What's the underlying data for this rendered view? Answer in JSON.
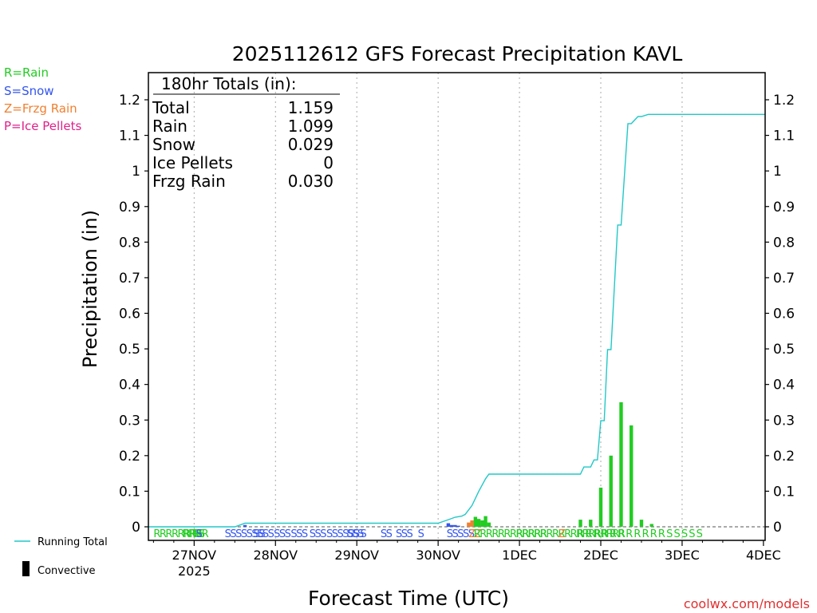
{
  "chart_data": {
    "type": "bar",
    "title": "2025112612 GFS Forecast Precipitation KAVL",
    "xlabel": "Forecast Time (UTC)",
    "ylabel": "Precipitation (in)",
    "ylim": [
      0,
      1.27
    ],
    "xlim_hours": [
      -1.5,
      180.5
    ],
    "x_unit": "forecast hours from 2025-11-26 12Z",
    "y_ticks": [
      {
        "v": 0,
        "label": "0"
      },
      {
        "v": 0.1,
        "label": "0.1"
      },
      {
        "v": 0.2,
        "label": "0.2"
      },
      {
        "v": 0.3,
        "label": "0.3"
      },
      {
        "v": 0.4,
        "label": "0.4"
      },
      {
        "v": 0.5,
        "label": "0.5"
      },
      {
        "v": 0.6,
        "label": "0.6"
      },
      {
        "v": 0.7,
        "label": "0.7"
      },
      {
        "v": 0.8,
        "label": "0.8"
      },
      {
        "v": 0.9,
        "label": "0.9"
      },
      {
        "v": 1.0,
        "label": "1"
      },
      {
        "v": 1.1,
        "label": "1.1"
      },
      {
        "v": 1.2,
        "label": "1.2"
      }
    ],
    "x_ticks": [
      {
        "h": 12,
        "label": "27NOV",
        "sub": "2025"
      },
      {
        "h": 36,
        "label": "28NOV",
        "sub": ""
      },
      {
        "h": 60,
        "label": "29NOV",
        "sub": ""
      },
      {
        "h": 84,
        "label": "30NOV",
        "sub": ""
      },
      {
        "h": 108,
        "label": "1DEC",
        "sub": ""
      },
      {
        "h": 132,
        "label": "2DEC",
        "sub": ""
      },
      {
        "h": 156,
        "label": "3DEC",
        "sub": ""
      },
      {
        "h": 180,
        "label": "4DEC",
        "sub": ""
      }
    ],
    "legend": {
      "placement": "top-left",
      "entries": [
        {
          "text": "R=Rain",
          "color": "#22cc22"
        },
        {
          "text": "S=Snow",
          "color": "#3355ee"
        },
        {
          "text": "Z=Frzg Rain",
          "color": "#f08030"
        },
        {
          "text": "P=Ice Pellets",
          "color": "#e0208a"
        }
      ]
    },
    "bottom_legend": {
      "running_total": "Running Total",
      "convective": "Convective"
    },
    "totals_box": {
      "header": "180hr Totals (in):",
      "rows": [
        {
          "label": "Total",
          "value": "1.159"
        },
        {
          "label": "Rain",
          "value": "1.099"
        },
        {
          "label": "Snow",
          "value": "0.029"
        },
        {
          "label": "Ice Pellets",
          "value": "0"
        },
        {
          "label": "Frzg Rain",
          "value": "0.030"
        }
      ]
    },
    "bars": [
      {
        "h": 27,
        "v": 0.005,
        "type": "S"
      },
      {
        "h": 87,
        "v": 0.01,
        "type": "S"
      },
      {
        "h": 88,
        "v": 0.005,
        "type": "S"
      },
      {
        "h": 89,
        "v": 0.005,
        "type": "S"
      },
      {
        "h": 90,
        "v": 0.003,
        "type": "S"
      },
      {
        "h": 93,
        "v": 0.012,
        "type": "Z"
      },
      {
        "h": 94,
        "v": 0.018,
        "type": "Z"
      },
      {
        "h": 95,
        "v": 0.028,
        "type": "R"
      },
      {
        "h": 96,
        "v": 0.022,
        "type": "R"
      },
      {
        "h": 97,
        "v": 0.018,
        "type": "R"
      },
      {
        "h": 98,
        "v": 0.03,
        "type": "R"
      },
      {
        "h": 99,
        "v": 0.012,
        "type": "R"
      },
      {
        "h": 126,
        "v": 0.02,
        "type": "R"
      },
      {
        "h": 129,
        "v": 0.02,
        "type": "R"
      },
      {
        "h": 132,
        "v": 0.11,
        "type": "R"
      },
      {
        "h": 135,
        "v": 0.2,
        "type": "R"
      },
      {
        "h": 138,
        "v": 0.35,
        "type": "R"
      },
      {
        "h": 141,
        "v": 0.285,
        "type": "R"
      },
      {
        "h": 144,
        "v": 0.02,
        "type": "R"
      },
      {
        "h": 147,
        "v": 0.008,
        "type": "R"
      }
    ],
    "running_total": [
      [
        -1.5,
        0
      ],
      [
        24,
        0
      ],
      [
        25.5,
        0.005
      ],
      [
        27,
        0.01
      ],
      [
        84,
        0.01
      ],
      [
        87,
        0.02
      ],
      [
        89,
        0.027
      ],
      [
        91,
        0.03
      ],
      [
        92,
        0.035
      ],
      [
        94,
        0.06
      ],
      [
        96,
        0.1
      ],
      [
        98,
        0.135
      ],
      [
        99,
        0.148
      ],
      [
        120,
        0.148
      ],
      [
        126,
        0.148
      ],
      [
        127,
        0.168
      ],
      [
        129,
        0.168
      ],
      [
        130,
        0.188
      ],
      [
        131,
        0.188
      ],
      [
        132,
        0.298
      ],
      [
        133,
        0.298
      ],
      [
        134,
        0.498
      ],
      [
        135,
        0.498
      ],
      [
        137,
        0.848
      ],
      [
        138,
        0.848
      ],
      [
        140,
        1.133
      ],
      [
        141,
        1.133
      ],
      [
        143,
        1.153
      ],
      [
        144,
        1.153
      ],
      [
        146,
        1.159
      ],
      [
        180.5,
        1.159
      ]
    ],
    "ptype_strip": [
      {
        "h": 0,
        "c": "RRRRRRRRR"
      },
      {
        "h": 8.5,
        "c": "RRR"
      },
      {
        "h": 11.5,
        "c": "RS"
      },
      {
        "h": 12.5,
        "c": "S"
      },
      {
        "h": 21,
        "c": "SSSSSSSSS"
      },
      {
        "h": 29.5,
        "c": "SS"
      },
      {
        "h": 35.5,
        "c": "SSS"
      },
      {
        "h": 40.5,
        "c": "SSS"
      },
      {
        "h": 46,
        "c": "SSS"
      },
      {
        "h": 51,
        "c": "SSSSSS"
      },
      {
        "h": 57,
        "c": "SSS"
      },
      {
        "h": 61,
        "c": "S"
      },
      {
        "h": 67,
        "c": "SS"
      },
      {
        "h": 71.5,
        "c": "SSS"
      },
      {
        "h": 78,
        "c": "S"
      },
      {
        "h": 86.5,
        "c": "SSSSS"
      },
      {
        "h": 93,
        "c": "ZZ"
      },
      {
        "h": 94.5,
        "c": "RRRRRRRRRRRR"
      },
      {
        "h": 107,
        "c": "RRRRRRRRRRRRRRRRRR"
      },
      {
        "h": 119.5,
        "c": "Z"
      },
      {
        "h": 125,
        "c": "R R R R R R R R R R R S S S S S"
      }
    ],
    "colors": {
      "rain": "#22cc22",
      "snow": "#3355ee",
      "frzg": "#f08030",
      "ice": "#e0208a",
      "total": "#22c8c8"
    }
  },
  "credit": "coolwx.com/models"
}
